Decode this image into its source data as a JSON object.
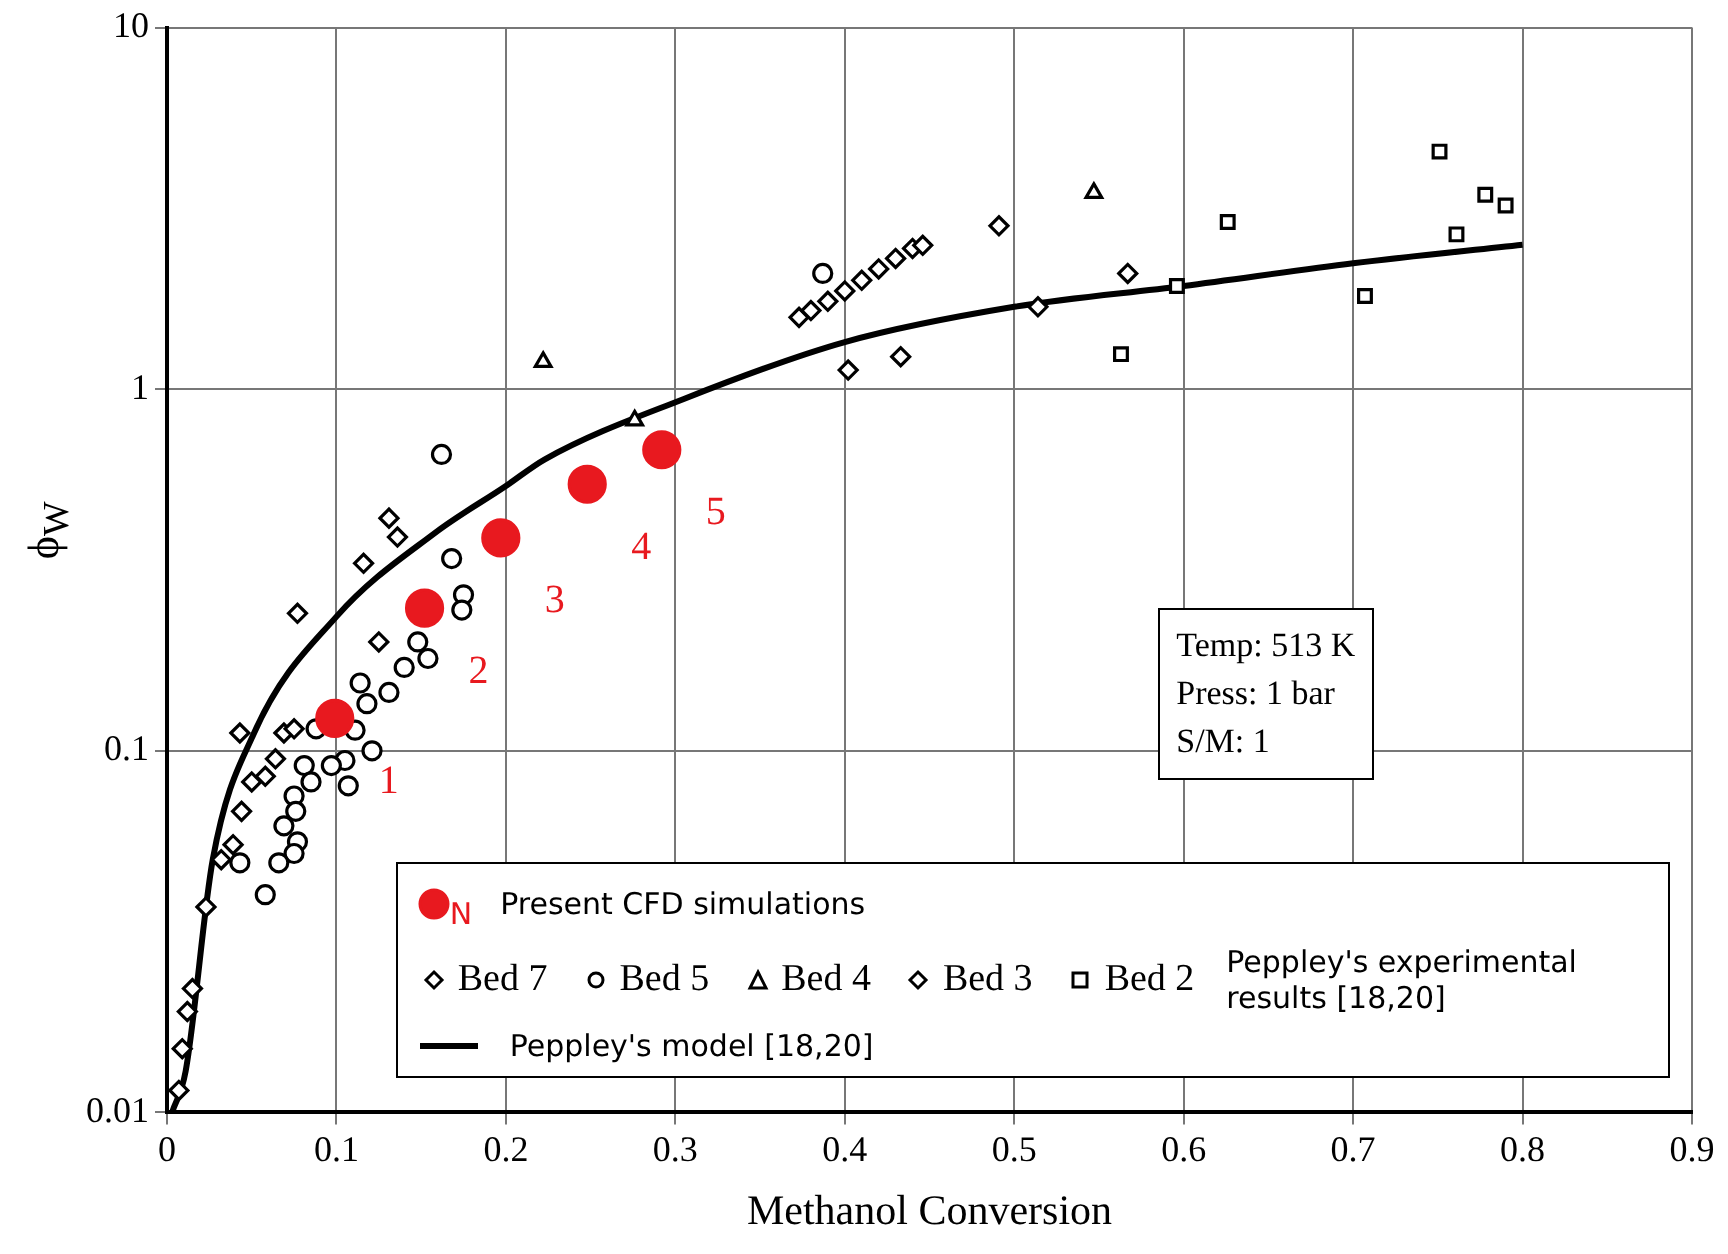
{
  "chart_data": {
    "type": "scatter",
    "xlabel": "Methanol Conversion",
    "ylabel": "ϕ$_{W}$",
    "xlim": [
      0,
      0.9
    ],
    "xticks": [
      0,
      0.1,
      0.2,
      0.3,
      0.4,
      0.5,
      0.6,
      0.7,
      0.8,
      0.9
    ],
    "ylim": [
      0.01,
      10
    ],
    "yticks": [
      0.01,
      0.1,
      1,
      10
    ],
    "log": "y",
    "grid": true,
    "legend": "bottom",
    "annotations": [
      "Temp: 513 K",
      "Press: 1 bar",
      "S/M: 1",
      "N",
      "Peppley's experimental results [18,20]",
      {
        "text": "1",
        "x": 0.099,
        "y": 0.123
      },
      {
        "text": "2",
        "x": 0.152,
        "y": 0.248
      },
      {
        "text": "3",
        "x": 0.197,
        "y": 0.388
      },
      {
        "text": "4",
        "x": 0.248,
        "y": 0.546
      },
      {
        "text": "5",
        "x": 0.292,
        "y": 0.68
      }
    ],
    "series": [
      {
        "name": "Present CFD simulations",
        "color": "#e8191f",
        "marker": "circle",
        "x": [
          0.099,
          0.152,
          0.197,
          0.248,
          0.292
        ],
        "values": [
          0.123,
          0.248,
          0.388,
          0.546,
          0.68
        ]
      },
      {
        "name": "Bed 7",
        "color": "#000000",
        "marker": "diamond",
        "x": [
          0.131,
          0.136,
          0.116,
          0.077,
          0.125,
          0.043,
          0.069,
          0.075,
          0.064,
          0.058,
          0.05,
          0.044,
          0.039,
          0.032,
          0.023,
          0.015,
          0.012,
          0.009,
          0.007,
          0.373,
          0.38,
          0.39,
          0.4,
          0.41,
          0.42,
          0.43,
          0.44,
          0.446,
          0.514
        ],
        "values": [
          0.44,
          0.39,
          0.33,
          0.24,
          0.2,
          0.112,
          0.112,
          0.115,
          0.095,
          0.085,
          0.082,
          0.068,
          0.055,
          0.05,
          0.037,
          0.022,
          0.019,
          0.015,
          0.0115,
          1.58,
          1.65,
          1.75,
          1.87,
          2.0,
          2.15,
          2.3,
          2.45,
          2.5,
          1.69
        ]
      },
      {
        "name": "Bed 5",
        "color": "#000000",
        "marker": "circle",
        "x": [
          0.162,
          0.168,
          0.175,
          0.174,
          0.15,
          0.148,
          0.154,
          0.14,
          0.131,
          0.114,
          0.118,
          0.111,
          0.088,
          0.121,
          0.105,
          0.097,
          0.107,
          0.081,
          0.085,
          0.075,
          0.076,
          0.069,
          0.077,
          0.075,
          0.066,
          0.043,
          0.058,
          0.387
        ],
        "values": [
          0.66,
          0.34,
          0.27,
          0.245,
          null,
          0.2,
          0.18,
          0.17,
          0.145,
          0.154,
          0.135,
          0.114,
          0.115,
          0.1,
          0.094,
          0.091,
          0.08,
          0.091,
          0.082,
          0.075,
          0.068,
          0.062,
          0.056,
          0.052,
          0.049,
          0.049,
          0.04,
          2.09
        ]
      },
      {
        "name": "Bed 4",
        "color": "#000000",
        "marker": "triangle",
        "x": [
          0.222,
          0.276,
          0.547
        ],
        "values": [
          1.19,
          0.82,
          3.49
        ]
      },
      {
        "name": "Bed 3",
        "color": "#000000",
        "marker": "diamond",
        "x": [
          0.491,
          0.567,
          0.402,
          0.433
        ],
        "values": [
          2.83,
          2.09,
          1.13,
          1.23
        ]
      },
      {
        "name": "Bed 2",
        "color": "#000000",
        "marker": "square",
        "x": [
          0.751,
          0.778,
          0.79,
          0.761,
          0.707,
          0.626,
          0.596,
          0.563
        ],
        "values": [
          4.54,
          3.45,
          3.22,
          2.68,
          1.81,
          2.9,
          1.93,
          1.25
        ]
      },
      {
        "name": "Peppley's model [18,20]",
        "type": "line",
        "color": "#000000",
        "marker": "none",
        "x": [
          0.003,
          0.011,
          0.027,
          0.051,
          0.1,
          0.158,
          0.2,
          0.223,
          0.305,
          0.4,
          0.5,
          0.6,
          0.7,
          0.8
        ],
        "values": [
          0.01,
          0.013,
          0.05,
          0.111,
          0.235,
          0.4,
          0.54,
          0.64,
          0.94,
          1.35,
          1.69,
          1.93,
          2.23,
          2.51
        ]
      }
    ]
  }
}
